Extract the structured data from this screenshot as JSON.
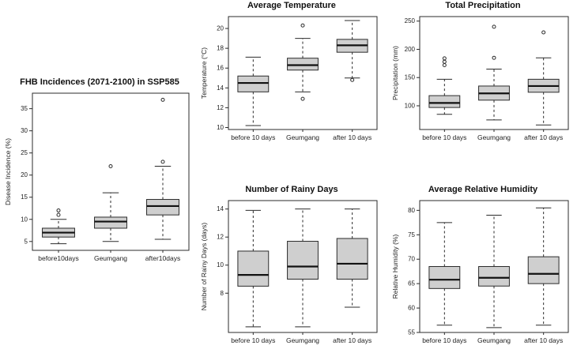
{
  "figure_background": "#ffffff",
  "box_fill_color": "#cfcfcf",
  "line_color": "#2b2b2b",
  "chart_data": [
    {
      "type": "boxplot",
      "title": "FHB Incidences (2071-2100) in SSP585",
      "ylabel": "Disease Incidence (%)",
      "xlabel": "",
      "categories": [
        "before10days",
        "Geumgang",
        "after10days"
      ],
      "ylim": [
        3,
        38.5
      ],
      "yticks": [
        5,
        10,
        15,
        20,
        25,
        30,
        35
      ],
      "grid": false,
      "boxes": [
        {
          "low": 4.5,
          "q1": 6.0,
          "median": 7.0,
          "q3": 8.0,
          "high": 10.0,
          "outliers": [
            11,
            12
          ]
        },
        {
          "low": 5.0,
          "q1": 8.0,
          "median": 9.5,
          "q3": 10.5,
          "high": 16.0,
          "outliers": [
            22
          ]
        },
        {
          "low": 5.5,
          "q1": 11.0,
          "median": 13.0,
          "q3": 14.5,
          "high": 22.0,
          "outliers": [
            23,
            37
          ]
        }
      ]
    },
    {
      "type": "boxplot",
      "title": "Average Temperature",
      "ylabel": "Temperature (°C)",
      "xlabel": "",
      "categories": [
        "before 10 days",
        "Geumgang",
        "after 10 days"
      ],
      "ylim": [
        9.8,
        21.2
      ],
      "yticks": [
        10,
        12,
        14,
        16,
        18,
        20
      ],
      "grid": false,
      "boxes": [
        {
          "low": 10.2,
          "q1": 13.6,
          "median": 14.5,
          "q3": 15.2,
          "high": 17.1,
          "outliers": []
        },
        {
          "low": 13.6,
          "q1": 15.8,
          "median": 16.3,
          "q3": 17.0,
          "high": 19.0,
          "outliers": [
            12.9,
            20.3
          ]
        },
        {
          "low": 15.0,
          "q1": 17.6,
          "median": 18.3,
          "q3": 18.9,
          "high": 20.8,
          "outliers": [
            14.8
          ]
        }
      ]
    },
    {
      "type": "boxplot",
      "title": "Total Precipitation",
      "ylabel": "Precipitation (mm)",
      "xlabel": "",
      "categories": [
        "before 10 days",
        "Geumgang",
        "after 10 days"
      ],
      "ylim": [
        58,
        258
      ],
      "yticks": [
        100,
        150,
        200,
        250
      ],
      "grid": false,
      "boxes": [
        {
          "low": 85,
          "q1": 97,
          "median": 105,
          "q3": 118,
          "high": 147,
          "outliers": [
            172,
            178,
            184
          ]
        },
        {
          "low": 75,
          "q1": 110,
          "median": 122,
          "q3": 135,
          "high": 165,
          "outliers": [
            185,
            240
          ]
        },
        {
          "low": 66,
          "q1": 124,
          "median": 135,
          "q3": 147,
          "high": 185,
          "outliers": [
            230
          ]
        }
      ]
    },
    {
      "type": "boxplot",
      "title": "Number of Rainy Days",
      "ylabel": "Number of Rainy Days (days)",
      "xlabel": "",
      "categories": [
        "before 10 days",
        "Geumgang",
        "after 10 days"
      ],
      "ylim": [
        5.2,
        14.6
      ],
      "yticks": [
        8,
        10,
        12,
        14
      ],
      "grid": false,
      "boxes": [
        {
          "low": 5.6,
          "q1": 8.5,
          "median": 9.3,
          "q3": 11.0,
          "high": 13.9,
          "outliers": []
        },
        {
          "low": 5.6,
          "q1": 9.0,
          "median": 9.9,
          "q3": 11.7,
          "high": 14.0,
          "outliers": []
        },
        {
          "low": 7.0,
          "q1": 9.0,
          "median": 10.1,
          "q3": 11.9,
          "high": 14.0,
          "outliers": []
        }
      ]
    },
    {
      "type": "boxplot",
      "title": "Average Relative Humidity",
      "ylabel": "Relative Humidity (%)",
      "xlabel": "",
      "categories": [
        "before 10 days",
        "Geumgang",
        "after 10 days"
      ],
      "ylim": [
        55,
        82
      ],
      "yticks": [
        55,
        60,
        65,
        70,
        75,
        80
      ],
      "grid": false,
      "boxes": [
        {
          "low": 56.5,
          "q1": 64.0,
          "median": 65.8,
          "q3": 68.5,
          "high": 77.5,
          "outliers": []
        },
        {
          "low": 56.0,
          "q1": 64.5,
          "median": 66.2,
          "q3": 68.5,
          "high": 79.0,
          "outliers": []
        },
        {
          "low": 56.5,
          "q1": 65.0,
          "median": 67.0,
          "q3": 70.5,
          "high": 80.5,
          "outliers": []
        }
      ]
    }
  ]
}
